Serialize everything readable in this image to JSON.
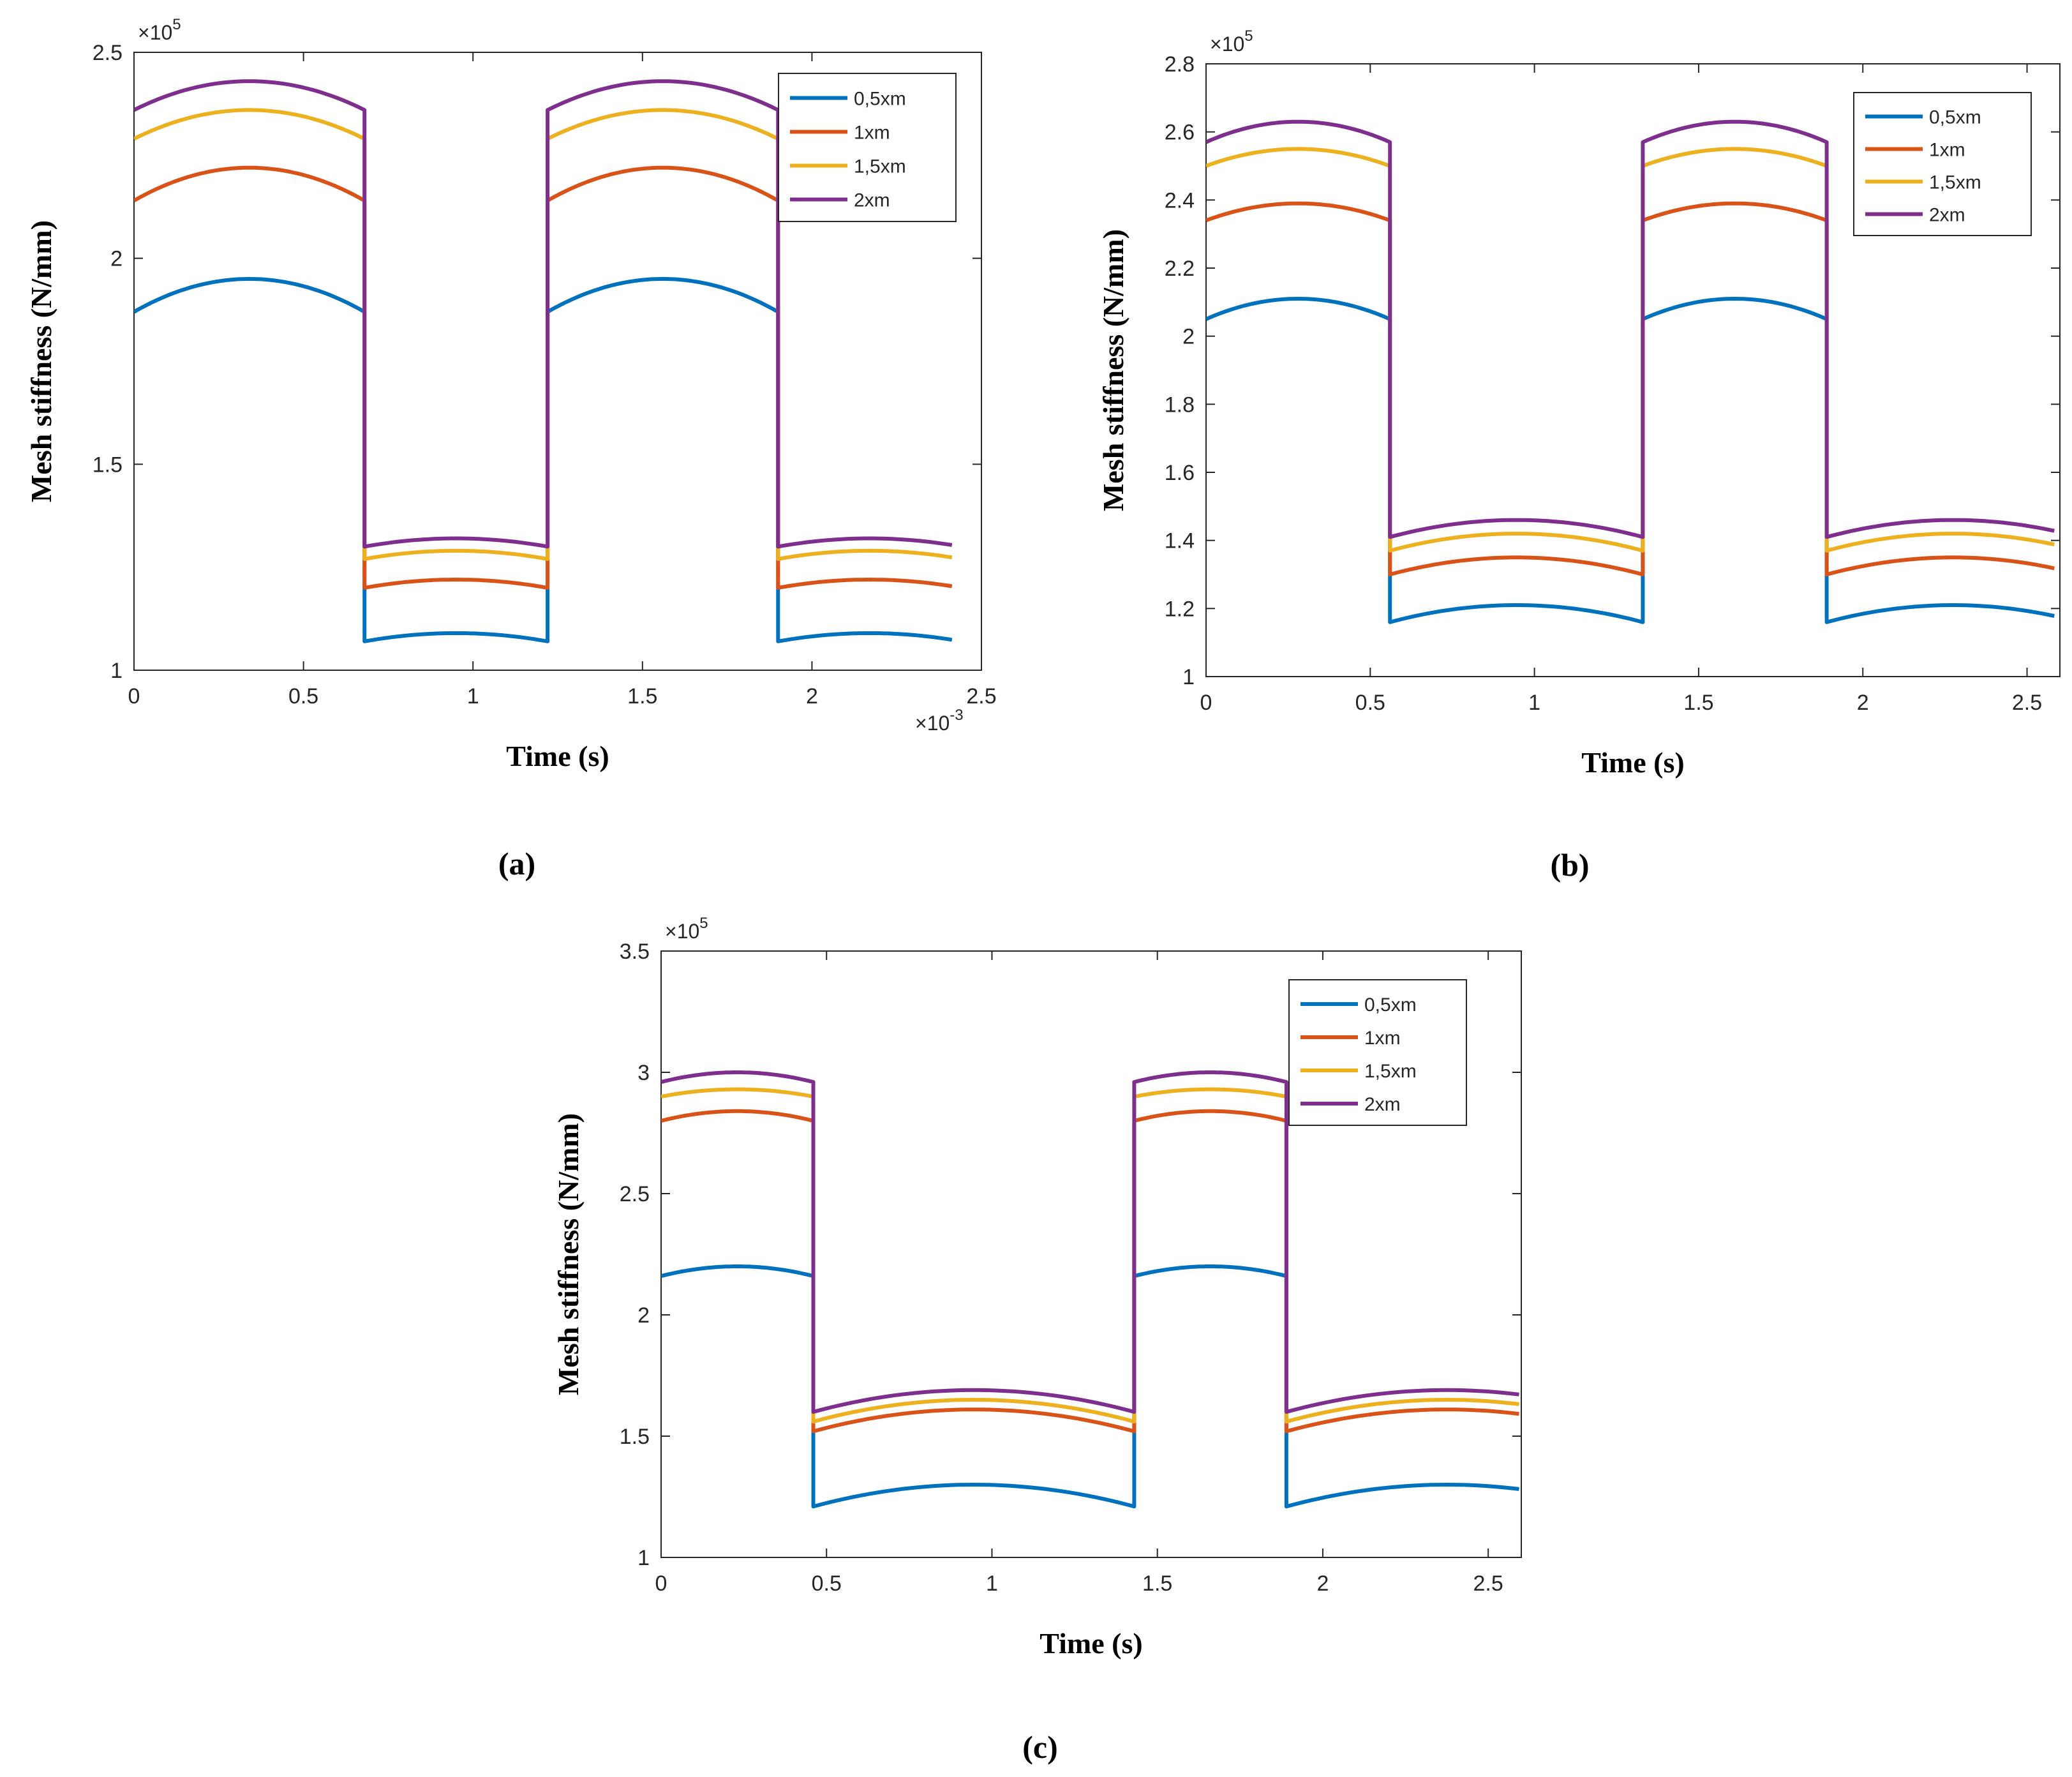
{
  "chart_data": [
    {
      "type": "line",
      "panel_label": "(a)",
      "xlabel": "Time (s)",
      "ylabel": "Mesh stiffness (N/mm)",
      "x_multiplier": "×10",
      "x_exponent": "-3",
      "y_multiplier": "×10",
      "y_exponent": "5",
      "xlim": [
        0,
        2.5
      ],
      "ylim": [
        1,
        2.5
      ],
      "xticks": [
        "0",
        "0.5",
        "1",
        "1.5",
        "2",
        "2.5"
      ],
      "yticks": [
        "1",
        "1.5",
        "2",
        "2.5"
      ],
      "legend_position": "top-right",
      "period_x": [
        0,
        0.68,
        1.22
      ],
      "x_end": 2.42,
      "series": [
        {
          "name": "0,5xm",
          "color": "#0072BD",
          "high": [
            1.87,
            1.95
          ],
          "low": [
            1.07,
            1.09
          ]
        },
        {
          "name": "1xm",
          "color": "#D95319",
          "high": [
            2.14,
            2.22
          ],
          "low": [
            1.2,
            1.22
          ]
        },
        {
          "name": "1,5xm",
          "color": "#EDB120",
          "high": [
            2.29,
            2.36
          ],
          "low": [
            1.27,
            1.29
          ]
        },
        {
          "name": "2xm",
          "color": "#7E2F8E",
          "high": [
            2.36,
            2.43
          ],
          "low": [
            1.3,
            1.32
          ]
        }
      ]
    },
    {
      "type": "line",
      "panel_label": "(b)",
      "xlabel": "Time (s)",
      "ylabel": "Mesh stiffness (N/mm)",
      "x_multiplier": "",
      "x_exponent": "",
      "y_multiplier": "×10",
      "y_exponent": "5",
      "xlim": [
        0,
        2.6
      ],
      "ylim": [
        1,
        2.8
      ],
      "xticks": [
        "0",
        "0.5",
        "1",
        "1.5",
        "2",
        "2.5"
      ],
      "yticks": [
        "1",
        "1.2",
        "1.4",
        "1.6",
        "1.8",
        "2",
        "2.2",
        "2.4",
        "2.6",
        "2.8"
      ],
      "legend_position": "top-right",
      "period_x": [
        0,
        0.56,
        1.33
      ],
      "x_end": 2.6,
      "series": [
        {
          "name": "0,5xm",
          "color": "#0072BD",
          "high": [
            2.05,
            2.11
          ],
          "low": [
            1.16,
            1.21
          ]
        },
        {
          "name": "1xm",
          "color": "#D95319",
          "high": [
            2.34,
            2.39
          ],
          "low": [
            1.3,
            1.35
          ]
        },
        {
          "name": "1,5xm",
          "color": "#EDB120",
          "high": [
            2.5,
            2.55
          ],
          "low": [
            1.37,
            1.42
          ]
        },
        {
          "name": "2xm",
          "color": "#7E2F8E",
          "high": [
            2.57,
            2.63
          ],
          "low": [
            1.41,
            1.46
          ]
        }
      ]
    },
    {
      "type": "line",
      "panel_label": "(c)",
      "xlabel": "Time (s)",
      "ylabel": "Mesh stiffness (N/mm)",
      "x_multiplier": "",
      "x_exponent": "",
      "y_multiplier": "×10",
      "y_exponent": "5",
      "xlim": [
        0,
        2.6
      ],
      "ylim": [
        1,
        3.5
      ],
      "xticks": [
        "0",
        "0.5",
        "1",
        "1.5",
        "2",
        "2.5"
      ],
      "yticks": [
        "1",
        "1.5",
        "2",
        "2.5",
        "3",
        "3.5"
      ],
      "legend_position": "top-right",
      "period_x": [
        0,
        0.46,
        1.43
      ],
      "x_end": 2.6,
      "series": [
        {
          "name": "0,5xm",
          "color": "#0072BD",
          "high": [
            2.16,
            2.2
          ],
          "low": [
            1.21,
            1.3
          ]
        },
        {
          "name": "1xm",
          "color": "#D95319",
          "high": [
            2.8,
            2.84
          ],
          "low": [
            1.52,
            1.61
          ]
        },
        {
          "name": "1,5xm",
          "color": "#EDB120",
          "high": [
            2.9,
            2.93
          ],
          "low": [
            1.56,
            1.65
          ]
        },
        {
          "name": "2xm",
          "color": "#7E2F8E",
          "high": [
            2.96,
            3.0
          ],
          "low": [
            1.6,
            1.69
          ]
        }
      ]
    }
  ]
}
